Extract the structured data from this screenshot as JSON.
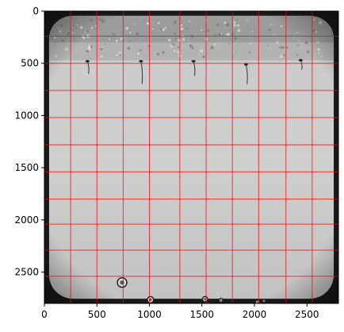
{
  "chart_data": {
    "type": "image",
    "title": "",
    "xlabel": "",
    "ylabel": "",
    "xlim": [
      0,
      2800
    ],
    "ylim": [
      2800,
      0
    ],
    "x_ticks": [
      0,
      500,
      1000,
      1500,
      2000,
      2500
    ],
    "y_ticks": [
      0,
      500,
      1000,
      1500,
      2000,
      2500
    ],
    "grid": true,
    "grid_color": "#ff0000",
    "grid_x_lines": [
      250,
      500,
      750,
      1000,
      1290,
      1540,
      1790,
      2040,
      2300,
      2550
    ],
    "grid_y_lines": [
      240,
      500,
      760,
      1020,
      1280,
      1540,
      1800,
      2040,
      2290,
      2540
    ],
    "image_description": "grayscale photo of a square petri plate; condensation droplets along the top edge; five seedlings with roots at y~500",
    "seedlings": [
      {
        "x": 410,
        "y": 480,
        "root_end_y": 600
      },
      {
        "x": 920,
        "y": 480,
        "root_end_y": 700
      },
      {
        "x": 1420,
        "y": 480,
        "root_end_y": 620
      },
      {
        "x": 1920,
        "y": 510,
        "root_end_y": 700
      },
      {
        "x": 2440,
        "y": 470,
        "root_end_y": 560
      }
    ],
    "bubbles": [
      {
        "x": 740,
        "y": 2600,
        "r": 45
      },
      {
        "x": 1010,
        "y": 2765,
        "r": 30
      },
      {
        "x": 1530,
        "y": 2760,
        "r": 25
      },
      {
        "x": 1680,
        "y": 2770,
        "r": 18
      },
      {
        "x": 2030,
        "y": 2790,
        "r": 20
      },
      {
        "x": 2090,
        "y": 2775,
        "r": 15
      }
    ]
  }
}
